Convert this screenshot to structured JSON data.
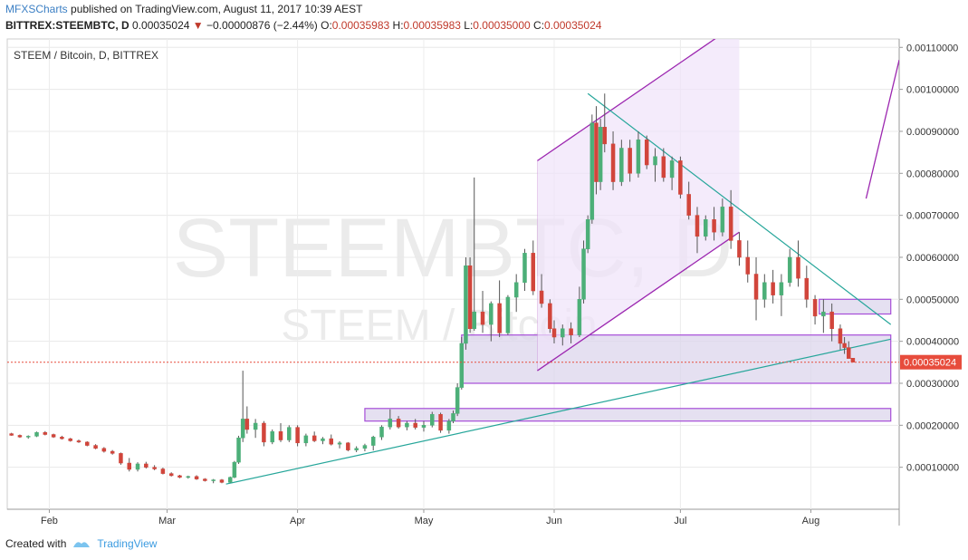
{
  "header": {
    "publisher": "MFXSCharts",
    "published_text": "published on TradingView.com, August 11, 2017 10:39 AEST",
    "symbol": "BITTREX:STEEMBTC, D",
    "last": "0.00035024",
    "change_arrow": "▼",
    "change": "−0.00000876 (−2.44%)",
    "o_label": "O:",
    "o": "0.00035983",
    "h_label": "H:",
    "h": "0.00035983",
    "l_label": "L:",
    "l": "0.00035000",
    "c_label": "C:",
    "c": "0.00035024"
  },
  "footer": {
    "created_with": "Created with",
    "brand": "TradingView"
  },
  "colors": {
    "up": "#4caf78",
    "down": "#d1453b",
    "wick": "#555555",
    "channel": "#9c27b0",
    "channel_fill": "#f0e2fa",
    "trend": "#26a69a",
    "zone_fill": "#dcd6ec",
    "zone_border": "#a64dd8",
    "price_tag": "#e74c3c"
  },
  "chart_data": {
    "type": "candlestick",
    "title": "STEEM / Bitcoin, D, BITTREX",
    "watermark_symbol": "STEEMBTC, D",
    "watermark_name": "STEEM / Bitcoin",
    "x_ticks": [
      {
        "label": "Feb",
        "date": "2017-02-01"
      },
      {
        "label": "Mar",
        "date": "2017-03-01"
      },
      {
        "label": "Apr",
        "date": "2017-04-01"
      },
      {
        "label": "May",
        "date": "2017-05-01"
      },
      {
        "label": "Jun",
        "date": "2017-06-01"
      },
      {
        "label": "Jul",
        "date": "2017-07-01"
      },
      {
        "label": "Aug",
        "date": "2017-08-01"
      }
    ],
    "y_ticks": [
      "0.00010000",
      "0.00020000",
      "0.00030000",
      "0.00040000",
      "0.00050000",
      "0.00060000",
      "0.00070000",
      "0.00080000",
      "0.00090000",
      "0.00100000",
      "0.00110000"
    ],
    "ylim": [
      0.0,
      0.00112
    ],
    "xlim": [
      "2017-01-22",
      "2017-08-22"
    ],
    "last_price_label": "0.00035024",
    "last_price": 0.00035024,
    "candles": [
      [
        "2017-01-23",
        0.00018,
        0.000182,
        0.000175,
        0.000176
      ],
      [
        "2017-01-25",
        0.000176,
        0.000178,
        0.00017,
        0.000172
      ],
      [
        "2017-01-27",
        0.000172,
        0.000176,
        0.000168,
        0.000174
      ],
      [
        "2017-01-29",
        0.000174,
        0.000185,
        0.000172,
        0.000183
      ],
      [
        "2017-01-31",
        0.000183,
        0.000186,
        0.000176,
        0.000178
      ],
      [
        "2017-02-02",
        0.000178,
        0.00018,
        0.00017,
        0.000172
      ],
      [
        "2017-02-04",
        0.000172,
        0.000175,
        0.000166,
        0.000168
      ],
      [
        "2017-02-06",
        0.000168,
        0.00017,
        0.000161,
        0.000163
      ],
      [
        "2017-02-08",
        0.000163,
        0.000166,
        0.000158,
        0.00016
      ],
      [
        "2017-02-10",
        0.00016,
        0.000162,
        0.00015,
        0.000152
      ],
      [
        "2017-02-12",
        0.000152,
        0.000155,
        0.000143,
        0.000145
      ],
      [
        "2017-02-14",
        0.000145,
        0.000148,
        0.000135,
        0.000138
      ],
      [
        "2017-02-16",
        0.000138,
        0.000141,
        0.00013,
        0.000133
      ],
      [
        "2017-02-18",
        0.000133,
        0.000135,
        0.000106,
        0.00011
      ],
      [
        "2017-02-20",
        0.00011,
        0.000122,
        9e-05,
        9.5e-05
      ],
      [
        "2017-02-22",
        9.5e-05,
        0.000112,
        9e-05,
        0.000108
      ],
      [
        "2017-02-24",
        0.000108,
        0.000113,
        9.7e-05,
        0.0001
      ],
      [
        "2017-02-26",
        0.0001,
        0.000105,
        9.3e-05,
        9.6e-05
      ],
      [
        "2017-02-28",
        9.6e-05,
        9.9e-05,
        8.3e-05,
        8.5e-05
      ],
      [
        "2017-03-02",
        8.5e-05,
        8.8e-05,
        7.8e-05,
        8e-05
      ],
      [
        "2017-03-04",
        8e-05,
        8.2e-05,
        7.4e-05,
        7.6e-05
      ],
      [
        "2017-03-06",
        7.6e-05,
        8e-05,
        7.3e-05,
        7.8e-05
      ],
      [
        "2017-03-08",
        7.8e-05,
        8.1e-05,
        7e-05,
        7.2e-05
      ],
      [
        "2017-03-10",
        7.2e-05,
        7.4e-05,
        6.6e-05,
        6.8e-05
      ],
      [
        "2017-03-12",
        6.8e-05,
        7.2e-05,
        6.2e-05,
        7e-05
      ],
      [
        "2017-03-14",
        7e-05,
        7.2e-05,
        6.2e-05,
        6.4e-05
      ],
      [
        "2017-03-16",
        6.4e-05,
        7.8e-05,
        6.3e-05,
        7.6e-05
      ],
      [
        "2017-03-17",
        7.6e-05,
        0.000115,
        7.4e-05,
        0.000112
      ],
      [
        "2017-03-18",
        0.000112,
        0.000175,
        0.000108,
        0.00017
      ],
      [
        "2017-03-19",
        0.00017,
        0.00033,
        0.00016,
        0.000215
      ],
      [
        "2017-03-20",
        0.000215,
        0.000245,
        0.00018,
        0.00019
      ],
      [
        "2017-03-22",
        0.00019,
        0.000215,
        0.00017,
        0.000205
      ],
      [
        "2017-03-24",
        0.000205,
        0.00021,
        0.00015,
        0.00016
      ],
      [
        "2017-03-26",
        0.00016,
        0.00019,
        0.000155,
        0.000185
      ],
      [
        "2017-03-28",
        0.000185,
        0.000205,
        0.00016,
        0.000165
      ],
      [
        "2017-03-30",
        0.000165,
        0.0002,
        0.00016,
        0.000195
      ],
      [
        "2017-04-01",
        0.000195,
        0.0002,
        0.00015,
        0.000158
      ],
      [
        "2017-04-03",
        0.000158,
        0.00018,
        0.00015,
        0.000175
      ],
      [
        "2017-04-05",
        0.000175,
        0.000185,
        0.00016,
        0.000163
      ],
      [
        "2017-04-07",
        0.000163,
        0.000172,
        0.000155,
        0.000168
      ],
      [
        "2017-04-09",
        0.000168,
        0.000178,
        0.000152,
        0.000155
      ],
      [
        "2017-04-11",
        0.000155,
        0.000162,
        0.000145,
        0.000158
      ],
      [
        "2017-04-13",
        0.000158,
        0.00016,
        0.000138,
        0.000141
      ],
      [
        "2017-04-15",
        0.000141,
        0.00015,
        0.000136,
        0.000145
      ],
      [
        "2017-04-17",
        0.000145,
        0.000156,
        0.000138,
        0.000152
      ],
      [
        "2017-04-19",
        0.000152,
        0.000175,
        0.00014,
        0.000172
      ],
      [
        "2017-04-21",
        0.000172,
        0.0002,
        0.000165,
        0.000196
      ],
      [
        "2017-04-23",
        0.000196,
        0.000238,
        0.00019,
        0.000215
      ],
      [
        "2017-04-25",
        0.000215,
        0.000222,
        0.000192,
        0.000196
      ],
      [
        "2017-04-27",
        0.000196,
        0.00021,
        0.000188,
        0.000205
      ],
      [
        "2017-04-29",
        0.000205,
        0.000215,
        0.00019,
        0.000195
      ],
      [
        "2017-05-01",
        0.000195,
        0.00021,
        0.000185,
        0.0002
      ],
      [
        "2017-05-03",
        0.0002,
        0.000232,
        0.000195,
        0.000226
      ],
      [
        "2017-05-05",
        0.000226,
        0.00023,
        0.000182,
        0.000188
      ],
      [
        "2017-05-07",
        0.000188,
        0.000215,
        0.00018,
        0.00021
      ],
      [
        "2017-05-08",
        0.00021,
        0.000235,
        0.000205,
        0.000228
      ],
      [
        "2017-05-09",
        0.000228,
        0.0003,
        0.000222,
        0.00029
      ],
      [
        "2017-05-10",
        0.00029,
        0.00041,
        0.000285,
        0.000395
      ],
      [
        "2017-05-11",
        0.000395,
        0.0006,
        0.00038,
        0.00058
      ],
      [
        "2017-05-12",
        0.00058,
        0.0006,
        0.00042,
        0.00043
      ],
      [
        "2017-05-13",
        0.00043,
        0.00079,
        0.000425,
        0.00047
      ],
      [
        "2017-05-15",
        0.00047,
        0.00052,
        0.00042,
        0.00044
      ],
      [
        "2017-05-17",
        0.00044,
        0.000495,
        0.0004,
        0.00049
      ],
      [
        "2017-05-19",
        0.00049,
        0.000545,
        0.00041,
        0.00042
      ],
      [
        "2017-05-21",
        0.00042,
        0.00051,
        0.000415,
        0.000505
      ],
      [
        "2017-05-23",
        0.000505,
        0.00056,
        0.00047,
        0.00054
      ],
      [
        "2017-05-25",
        0.00054,
        0.00062,
        0.00052,
        0.00061
      ],
      [
        "2017-05-27",
        0.00061,
        0.00064,
        0.00051,
        0.00052
      ],
      [
        "2017-05-29",
        0.00052,
        0.00056,
        0.00048,
        0.00049
      ],
      [
        "2017-05-31",
        0.00049,
        0.0005,
        0.00042,
        0.00043
      ],
      [
        "2017-06-01",
        0.00043,
        0.00045,
        0.000395,
        0.00041
      ],
      [
        "2017-06-03",
        0.00041,
        0.00044,
        0.00039,
        0.00043
      ],
      [
        "2017-06-05",
        0.00043,
        0.000445,
        0.000395,
        0.000415
      ],
      [
        "2017-06-07",
        0.000415,
        0.00053,
        0.00041,
        0.0005
      ],
      [
        "2017-06-08",
        0.0005,
        0.00064,
        0.00049,
        0.00062
      ],
      [
        "2017-06-09",
        0.00062,
        0.0007,
        0.00061,
        0.00069
      ],
      [
        "2017-06-10",
        0.00069,
        0.00094,
        0.00068,
        0.00092
      ],
      [
        "2017-06-11",
        0.00092,
        0.00096,
        0.00075,
        0.00078
      ],
      [
        "2017-06-12",
        0.00078,
        0.00093,
        0.00076,
        0.00091
      ],
      [
        "2017-06-13",
        0.00091,
        0.00099,
        0.00085,
        0.00087
      ],
      [
        "2017-06-15",
        0.00087,
        0.0009,
        0.00076,
        0.00078
      ],
      [
        "2017-06-17",
        0.00078,
        0.00088,
        0.00077,
        0.00086
      ],
      [
        "2017-06-19",
        0.00086,
        0.00088,
        0.00078,
        0.0008
      ],
      [
        "2017-06-21",
        0.0008,
        0.0009,
        0.00079,
        0.00088
      ],
      [
        "2017-06-23",
        0.00088,
        0.00089,
        0.00081,
        0.00082
      ],
      [
        "2017-06-25",
        0.00082,
        0.00086,
        0.00078,
        0.00084
      ],
      [
        "2017-06-27",
        0.00084,
        0.00086,
        0.00078,
        0.00079
      ],
      [
        "2017-06-29",
        0.00079,
        0.00084,
        0.00076,
        0.00083
      ],
      [
        "2017-07-01",
        0.00083,
        0.00084,
        0.00074,
        0.00075
      ],
      [
        "2017-07-03",
        0.00075,
        0.00078,
        0.00069,
        0.0007
      ],
      [
        "2017-07-05",
        0.0007,
        0.00072,
        0.00061,
        0.00065
      ],
      [
        "2017-07-07",
        0.00065,
        0.0007,
        0.00064,
        0.00069
      ],
      [
        "2017-07-09",
        0.00069,
        0.00072,
        0.00064,
        0.00066
      ],
      [
        "2017-07-11",
        0.00066,
        0.00074,
        0.00065,
        0.00072
      ],
      [
        "2017-07-13",
        0.00072,
        0.00076,
        0.00062,
        0.00064
      ],
      [
        "2017-07-15",
        0.00064,
        0.00066,
        0.00058,
        0.0006
      ],
      [
        "2017-07-17",
        0.0006,
        0.00064,
        0.00054,
        0.00056
      ],
      [
        "2017-07-19",
        0.00056,
        0.0006,
        0.00045,
        0.0005
      ],
      [
        "2017-07-21",
        0.0005,
        0.00056,
        0.00048,
        0.00054
      ],
      [
        "2017-07-23",
        0.00054,
        0.00057,
        0.00049,
        0.00051
      ],
      [
        "2017-07-25",
        0.00051,
        0.00056,
        0.00046,
        0.00054
      ],
      [
        "2017-07-27",
        0.00054,
        0.00062,
        0.00053,
        0.0006
      ],
      [
        "2017-07-29",
        0.0006,
        0.00064,
        0.00053,
        0.00055
      ],
      [
        "2017-07-31",
        0.00055,
        0.00058,
        0.00048,
        0.0005
      ],
      [
        "2017-08-02",
        0.0005,
        0.00051,
        0.00044,
        0.00046
      ],
      [
        "2017-08-04",
        0.00046,
        0.0005,
        0.00042,
        0.00047
      ],
      [
        "2017-08-06",
        0.00047,
        0.00049,
        0.0004,
        0.00043
      ],
      [
        "2017-08-08",
        0.00043,
        0.00044,
        0.00038,
        0.000395
      ],
      [
        "2017-08-09",
        0.000395,
        0.00041,
        0.00037,
        0.000385
      ],
      [
        "2017-08-10",
        0.000385,
        0.0004,
        0.00036,
        0.000359
      ],
      [
        "2017-08-11",
        0.00035983,
        0.00035983,
        0.00035,
        0.00035024
      ]
    ],
    "drawings": {
      "ascending_channel": {
        "lower": [
          [
            "2017-05-28",
            0.00033
          ],
          [
            "2017-07-15",
            0.00066
          ]
        ],
        "upper": [
          [
            "2017-05-28",
            0.00083
          ],
          [
            "2017-07-15",
            0.00116
          ]
        ]
      },
      "descending_trendline": [
        [
          "2017-06-09",
          0.00099
        ],
        [
          "2017-08-20",
          0.00044
        ]
      ],
      "ascending_trendline": [
        [
          "2017-03-15",
          6e-05
        ],
        [
          "2017-08-20",
          0.000405
        ]
      ],
      "zones": [
        {
          "from": "2017-05-10",
          "to": "2017-08-20",
          "top": 0.000415,
          "bottom": 0.0003
        },
        {
          "from": "2017-04-17",
          "to": "2017-08-20",
          "top": 0.00024,
          "bottom": 0.00021
        },
        {
          "from": "2017-08-03",
          "to": "2017-08-20",
          "top": 0.0005,
          "bottom": 0.000465
        }
      ]
    }
  }
}
